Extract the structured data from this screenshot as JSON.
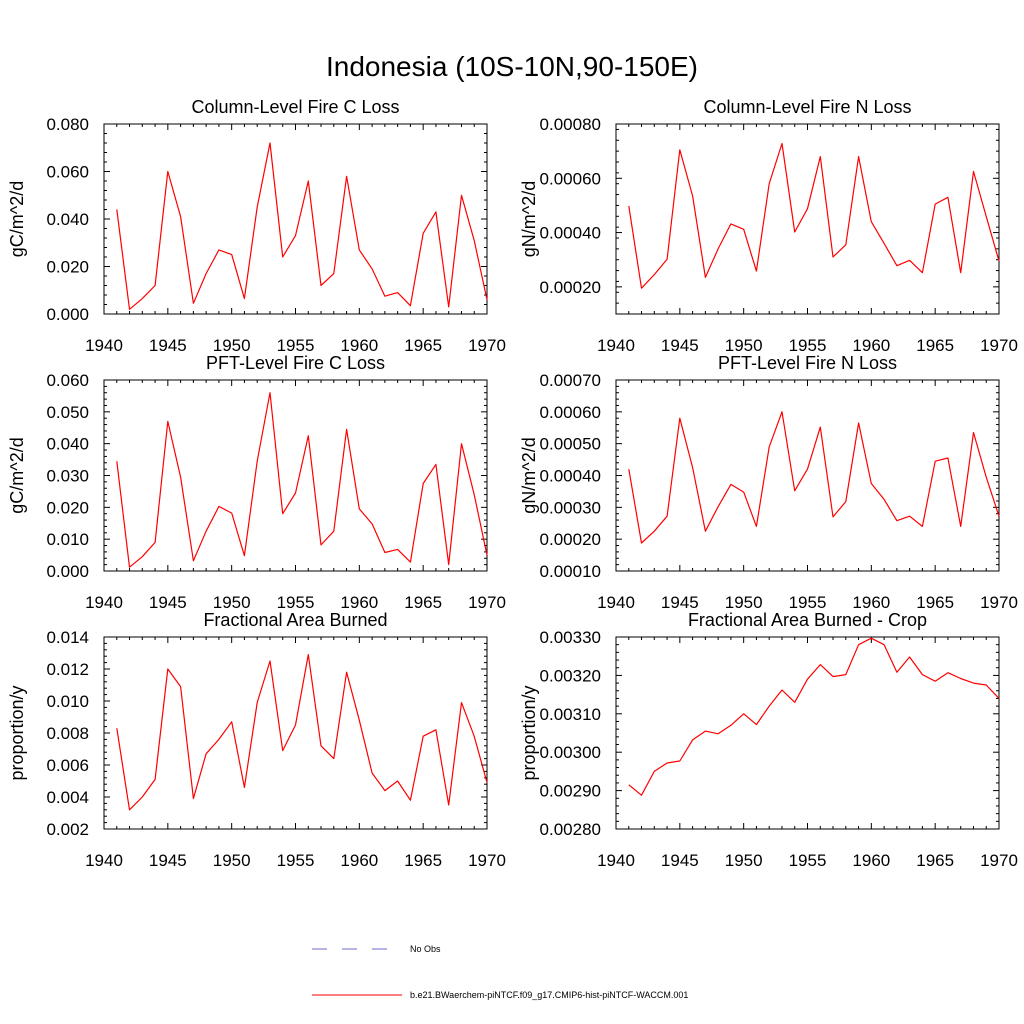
{
  "page": {
    "title": "Indonesia (10S-10N,90-150E)"
  },
  "legend": {
    "obs_label": "No Obs",
    "model_label": "b.e21.BWaerchem-piNTCF.f09_g17.CMIP6-hist-piNTCF-WACCM.001",
    "obs_color": "#6b6bc8",
    "model_color": "#ff0000"
  },
  "chart_data": [
    {
      "type": "line",
      "title": "Column-Level Fire C Loss",
      "ylabel": "gC/m^2/d",
      "xlim": [
        1940,
        1970
      ],
      "ylim": [
        0,
        0.08
      ],
      "xticks": [
        "1940",
        "1945",
        "1950",
        "1955",
        "1960",
        "1965",
        "1970"
      ],
      "yticks": [
        "0.000",
        "0.020",
        "0.040",
        "0.060",
        "0.080"
      ],
      "x": [
        1941,
        1942,
        1943,
        1944,
        1945,
        1946,
        1947,
        1948,
        1949,
        1950,
        1951,
        1952,
        1953,
        1954,
        1955,
        1956,
        1957,
        1958,
        1959,
        1960,
        1961,
        1962,
        1963,
        1964,
        1965,
        1966,
        1967,
        1968,
        1969,
        1970
      ],
      "series": [
        {
          "color": "#ff0000",
          "values": [
            0.044,
            0.002,
            0.0065,
            0.012,
            0.06,
            0.041,
            0.0045,
            0.017,
            0.027,
            0.025,
            0.0065,
            0.045,
            0.072,
            0.024,
            0.033,
            0.056,
            0.012,
            0.017,
            0.058,
            0.027,
            0.019,
            0.0075,
            0.009,
            0.0035,
            0.034,
            0.043,
            0.003,
            0.05,
            0.031,
            0.006
          ]
        }
      ]
    },
    {
      "type": "line",
      "title": "Column-Level Fire N Loss",
      "ylabel": "gN/m^2/d",
      "xlim": [
        1940,
        1970
      ],
      "ylim": [
        0.0001,
        0.0008
      ],
      "xticks": [
        "1940",
        "1945",
        "1950",
        "1955",
        "1960",
        "1965",
        "1970"
      ],
      "yticks": [
        "0.00020",
        "0.00040",
        "0.00060",
        "0.00080"
      ],
      "x": [
        1941,
        1942,
        1943,
        1944,
        1945,
        1946,
        1947,
        1948,
        1949,
        1950,
        1951,
        1952,
        1953,
        1954,
        1955,
        1956,
        1957,
        1958,
        1959,
        1960,
        1961,
        1962,
        1963,
        1964,
        1965,
        1966,
        1967,
        1968,
        1969,
        1970
      ],
      "series": [
        {
          "color": "#ff0000",
          "values": [
            0.000498,
            0.000195,
            0.000245,
            0.000302,
            0.000705,
            0.000535,
            0.000235,
            0.00034,
            0.000432,
            0.000412,
            0.000258,
            0.00058,
            0.000728,
            0.000402,
            0.000488,
            0.00068,
            0.00031,
            0.000355,
            0.00068,
            0.00044,
            0.00036,
            0.000278,
            0.000298,
            0.000252,
            0.000505,
            0.00053,
            0.000252,
            0.000625,
            0.00046,
            0.000295
          ]
        }
      ]
    },
    {
      "type": "line",
      "title": "PFT-Level Fire C Loss",
      "ylabel": "gC/m^2/d",
      "xlim": [
        1940,
        1970
      ],
      "ylim": [
        0,
        0.06
      ],
      "xticks": [
        "1940",
        "1945",
        "1950",
        "1955",
        "1960",
        "1965",
        "1970"
      ],
      "yticks": [
        "0.000",
        "0.010",
        "0.020",
        "0.030",
        "0.040",
        "0.050",
        "0.060"
      ],
      "x": [
        1941,
        1942,
        1943,
        1944,
        1945,
        1946,
        1947,
        1948,
        1949,
        1950,
        1951,
        1952,
        1953,
        1954,
        1955,
        1956,
        1957,
        1958,
        1959,
        1960,
        1961,
        1962,
        1963,
        1964,
        1965,
        1966,
        1967,
        1968,
        1969,
        1970
      ],
      "series": [
        {
          "color": "#ff0000",
          "values": [
            0.0345,
            0.0012,
            0.0045,
            0.009,
            0.047,
            0.0295,
            0.0032,
            0.0125,
            0.0203,
            0.0182,
            0.0048,
            0.0345,
            0.056,
            0.018,
            0.0245,
            0.0425,
            0.0082,
            0.0125,
            0.0445,
            0.0195,
            0.0148,
            0.0058,
            0.0068,
            0.0028,
            0.0275,
            0.0335,
            0.002,
            0.04,
            0.024,
            0.005
          ]
        }
      ]
    },
    {
      "type": "line",
      "title": "PFT-Level Fire N Loss",
      "ylabel": "gN/m^2/d",
      "xlim": [
        1940,
        1970
      ],
      "ylim": [
        0.0001,
        0.0007
      ],
      "xticks": [
        "1940",
        "1945",
        "1950",
        "1955",
        "1960",
        "1965",
        "1970"
      ],
      "yticks": [
        "0.00010",
        "0.00020",
        "0.00030",
        "0.00040",
        "0.00050",
        "0.00060",
        "0.00070"
      ],
      "x": [
        1941,
        1942,
        1943,
        1944,
        1945,
        1946,
        1947,
        1948,
        1949,
        1950,
        1951,
        1952,
        1953,
        1954,
        1955,
        1956,
        1957,
        1958,
        1959,
        1960,
        1961,
        1962,
        1963,
        1964,
        1965,
        1966,
        1967,
        1968,
        1969,
        1970
      ],
      "series": [
        {
          "color": "#ff0000",
          "values": [
            0.00042,
            0.000188,
            0.000225,
            0.000272,
            0.00058,
            0.000425,
            0.000225,
            0.000302,
            0.000372,
            0.000348,
            0.00024,
            0.00049,
            0.0006,
            0.000352,
            0.00042,
            0.000552,
            0.00027,
            0.000318,
            0.000565,
            0.000375,
            0.000325,
            0.000258,
            0.000272,
            0.00024,
            0.000445,
            0.000455,
            0.00024,
            0.000535,
            0.000395,
            0.000272
          ]
        }
      ]
    },
    {
      "type": "line",
      "title": "Fractional Area Burned",
      "ylabel": "proportion/y",
      "xlim": [
        1940,
        1970
      ],
      "ylim": [
        0.002,
        0.014
      ],
      "xticks": [
        "1940",
        "1945",
        "1950",
        "1955",
        "1960",
        "1965",
        "1970"
      ],
      "yticks": [
        "0.002",
        "0.004",
        "0.006",
        "0.008",
        "0.010",
        "0.012",
        "0.014"
      ],
      "x": [
        1941,
        1942,
        1943,
        1944,
        1945,
        1946,
        1947,
        1948,
        1949,
        1950,
        1951,
        1952,
        1953,
        1954,
        1955,
        1956,
        1957,
        1958,
        1959,
        1960,
        1961,
        1962,
        1963,
        1964,
        1965,
        1966,
        1967,
        1968,
        1969,
        1970
      ],
      "series": [
        {
          "color": "#ff0000",
          "values": [
            0.0083,
            0.0032,
            0.004,
            0.0051,
            0.012,
            0.0109,
            0.0039,
            0.0067,
            0.0076,
            0.0087,
            0.0046,
            0.0099,
            0.0125,
            0.0069,
            0.0085,
            0.0129,
            0.0072,
            0.0064,
            0.0118,
            0.0088,
            0.0055,
            0.0044,
            0.005,
            0.0038,
            0.0078,
            0.0082,
            0.0035,
            0.0099,
            0.0078,
            0.0049
          ]
        }
      ]
    },
    {
      "type": "line",
      "title": "Fractional Area Burned - Crop",
      "ylabel": "proportion/y",
      "xlim": [
        1940,
        1970
      ],
      "ylim": [
        0.0028,
        0.0033
      ],
      "xticks": [
        "1940",
        "1945",
        "1950",
        "1955",
        "1960",
        "1965",
        "1970"
      ],
      "yticks": [
        "0.00280",
        "0.00290",
        "0.00300",
        "0.00310",
        "0.00320",
        "0.00330"
      ],
      "x": [
        1941,
        1942,
        1943,
        1944,
        1945,
        1946,
        1947,
        1948,
        1949,
        1950,
        1951,
        1952,
        1953,
        1954,
        1955,
        1956,
        1957,
        1958,
        1959,
        1960,
        1961,
        1962,
        1963,
        1964,
        1965,
        1966,
        1967,
        1968,
        1969,
        1970
      ],
      "series": [
        {
          "color": "#ff0000",
          "values": [
            0.002915,
            0.002888,
            0.00295,
            0.002972,
            0.002977,
            0.003032,
            0.003055,
            0.003048,
            0.00307,
            0.0031,
            0.003072,
            0.00312,
            0.003162,
            0.00313,
            0.00319,
            0.003228,
            0.003197,
            0.003202,
            0.00328,
            0.003297,
            0.00328,
            0.003208,
            0.003248,
            0.003202,
            0.003185,
            0.003207,
            0.003192,
            0.00318,
            0.003175,
            0.00314
          ]
        }
      ]
    }
  ]
}
